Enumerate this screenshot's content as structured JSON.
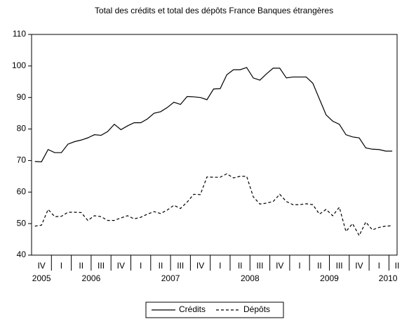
{
  "chart_data": {
    "type": "line",
    "title": "Total des crédits et total des dépôts France Banques étrangères",
    "quarters": [
      "IV",
      "I",
      "II",
      "III",
      "IV",
      "I",
      "II",
      "III",
      "IV",
      "I",
      "II",
      "III",
      "IV",
      "I",
      "II",
      "III",
      "IV",
      "I",
      "II"
    ],
    "years": [
      "2005",
      "2006",
      "2007",
      "2008",
      "2009",
      "2010"
    ],
    "ylim": [
      40,
      110
    ],
    "yticks": [
      40,
      50,
      60,
      70,
      80,
      90,
      100,
      110
    ],
    "grid": false,
    "legend": "bottom",
    "series": [
      {
        "name": "Crédits",
        "color": "#000000",
        "dash": "solid",
        "values": [
          69.7,
          69.6,
          73.5,
          72.5,
          72.5,
          75.2,
          76,
          76.5,
          77.2,
          78.2,
          78,
          79.2,
          81.5,
          79.8,
          81,
          82,
          82,
          83.2,
          85,
          85.5,
          86.8,
          88.5,
          87.8,
          90.3,
          90.2,
          90,
          89.3,
          92.7,
          92.8,
          97.2,
          98.8,
          98.8,
          99.5,
          96.2,
          95.5,
          97.5,
          99.3,
          99.3,
          96.2,
          96.5,
          96.5,
          96.5,
          94.5,
          89.5,
          84.5,
          82.5,
          81.5,
          78.2,
          77.5,
          77.2,
          74,
          73.6,
          73.5,
          73,
          73
        ]
      },
      {
        "name": "Dépôts",
        "color": "#000000",
        "dash": "dashed",
        "values": [
          49.2,
          49.5,
          54.5,
          52.2,
          52.3,
          53.6,
          53.6,
          53.5,
          51,
          52.5,
          52.2,
          51,
          51,
          51.8,
          52.5,
          51.5,
          52,
          53,
          53.8,
          53.2,
          54.3,
          55.8,
          54.8,
          56.8,
          59.3,
          59.2,
          64.8,
          64.7,
          64.7,
          65.8,
          64.5,
          65,
          65,
          58.5,
          56.2,
          56.5,
          57,
          59.3,
          57,
          56,
          56,
          56.3,
          56,
          53,
          54.5,
          52.5,
          55.2,
          47.5,
          50,
          46.2,
          50.5,
          48,
          48.8,
          49.2,
          49.3
        ]
      }
    ]
  }
}
